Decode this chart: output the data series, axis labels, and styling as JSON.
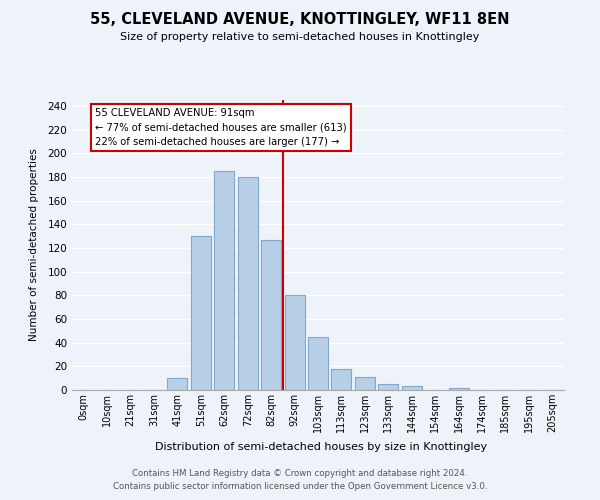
{
  "title": "55, CLEVELAND AVENUE, KNOTTINGLEY, WF11 8EN",
  "subtitle": "Size of property relative to semi-detached houses in Knottingley",
  "xlabel": "Distribution of semi-detached houses by size in Knottingley",
  "ylabel": "Number of semi-detached properties",
  "bar_labels": [
    "0sqm",
    "10sqm",
    "21sqm",
    "31sqm",
    "41sqm",
    "51sqm",
    "62sqm",
    "72sqm",
    "82sqm",
    "92sqm",
    "103sqm",
    "113sqm",
    "123sqm",
    "133sqm",
    "144sqm",
    "154sqm",
    "164sqm",
    "174sqm",
    "185sqm",
    "195sqm",
    "205sqm"
  ],
  "bar_values": [
    0,
    0,
    0,
    0,
    10,
    130,
    185,
    180,
    127,
    80,
    45,
    18,
    11,
    5,
    3,
    0,
    2,
    0,
    0,
    0,
    0
  ],
  "bar_color": "#b8cfe8",
  "bar_edge_color": "#7fa8cc",
  "annotation_title": "55 CLEVELAND AVENUE: 91sqm",
  "annotation_line1": "← 77% of semi-detached houses are smaller (613)",
  "annotation_line2": "22% of semi-detached houses are larger (177) →",
  "annotation_box_color": "#ffffff",
  "annotation_box_edge": "#cc0000",
  "marker_line_color": "#cc0000",
  "ylim": [
    0,
    245
  ],
  "yticks": [
    0,
    20,
    40,
    60,
    80,
    100,
    120,
    140,
    160,
    180,
    200,
    220,
    240
  ],
  "footer_line1": "Contains HM Land Registry data © Crown copyright and database right 2024.",
  "footer_line2": "Contains public sector information licensed under the Open Government Licence v3.0.",
  "bg_color": "#eef2f9",
  "grid_color": "#ffffff"
}
